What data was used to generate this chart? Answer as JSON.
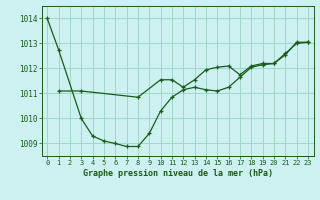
{
  "title": "Graphe pression niveau de la mer (hPa)",
  "background_color": "#cdf0f0",
  "grid_color": "#a0d8c8",
  "line_color": "#1a5c1a",
  "xlim": [
    -0.5,
    23.5
  ],
  "ylim": [
    1008.5,
    1014.5
  ],
  "y_ticks": [
    1009,
    1010,
    1011,
    1012,
    1013,
    1014
  ],
  "x_ticks": [
    0,
    1,
    2,
    3,
    4,
    5,
    6,
    7,
    8,
    9,
    10,
    11,
    12,
    13,
    14,
    15,
    16,
    17,
    18,
    19,
    20,
    21,
    22,
    23
  ],
  "line1_x": [
    0,
    1,
    3,
    4,
    5,
    6,
    7,
    8,
    9,
    10,
    11,
    12,
    13,
    14,
    15,
    16,
    17,
    18,
    19,
    20,
    21,
    22,
    23
  ],
  "line1_y": [
    1014.0,
    1012.75,
    1010.0,
    1009.3,
    1009.1,
    1009.0,
    1008.88,
    1008.88,
    1009.4,
    1010.3,
    1010.85,
    1011.15,
    1011.25,
    1011.15,
    1011.1,
    1011.25,
    1011.65,
    1012.05,
    1012.15,
    1012.2,
    1012.55,
    1013.05,
    1013.05
  ],
  "line2_x": [
    1,
    3,
    8,
    10,
    11,
    12,
    13,
    14,
    15,
    16,
    17,
    18,
    19,
    20,
    21,
    22,
    23
  ],
  "line2_y": [
    1011.1,
    1011.1,
    1010.85,
    1011.55,
    1011.55,
    1011.25,
    1011.55,
    1011.95,
    1012.05,
    1012.1,
    1011.75,
    1012.1,
    1012.2,
    1012.2,
    1012.6,
    1013.0,
    1013.05
  ]
}
